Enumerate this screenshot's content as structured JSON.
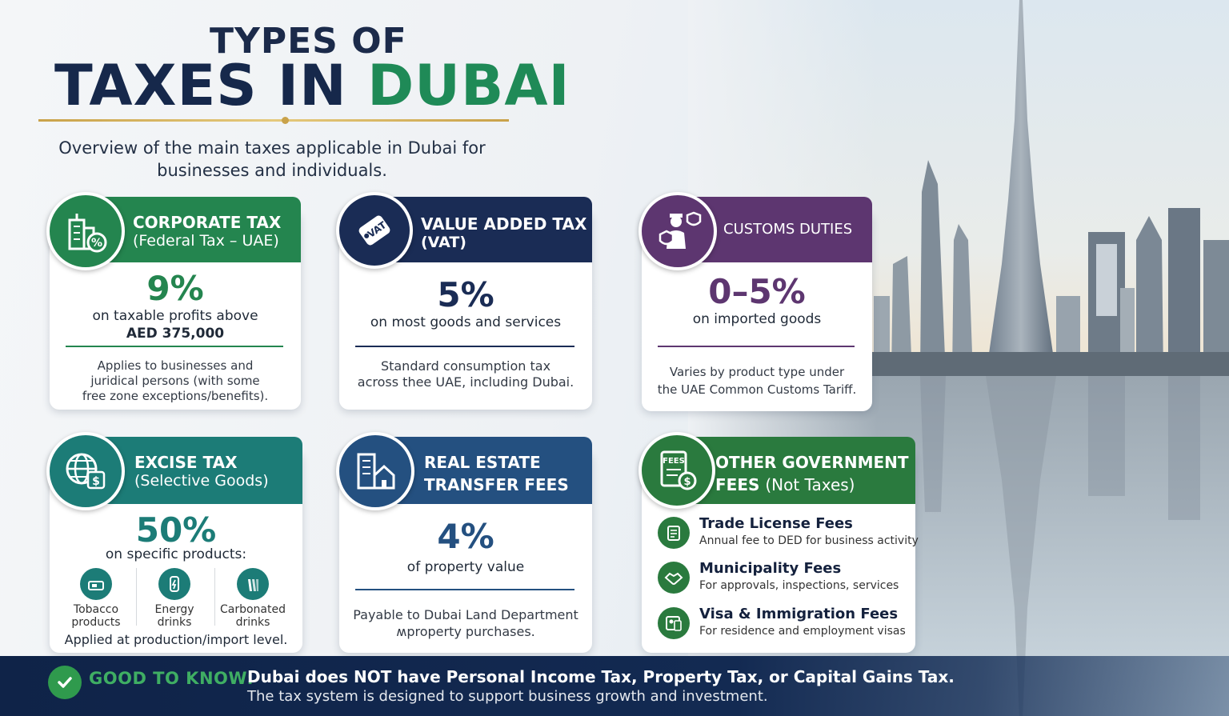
{
  "header": {
    "title_line1": "TYPES OF",
    "title_line2_main": "TAXES IN ",
    "title_line2_accent": "DUBAI",
    "subtitle_line1": "Overview of the main taxes applicable in Dubai for",
    "subtitle_line2": "businesses  and individuals."
  },
  "colors": {
    "navy": "#16284b",
    "green": "#24854f",
    "purple": "#5d3670",
    "teal": "#1c7c77",
    "blue": "#245080",
    "gold": "#c9a24a"
  },
  "cards": {
    "corporate": {
      "icon": "building-percent-icon",
      "title": "CORPORATE TAX",
      "subtitle": "(Federal Tax – UAE)",
      "rate": "9%",
      "desc_line1": "on taxable profits above",
      "desc_line2": "AED 375,000",
      "note_line1": "Applies to businesses and",
      "note_line2": "juridical persons (with some",
      "note_line3": "free zone exceptions/benefits)."
    },
    "vat": {
      "icon": "vat-tag-icon",
      "icon_text": "VAT",
      "title": "VALUE ADDED TAX",
      "subtitle": "(VAT)",
      "rate": "5%",
      "desc_line1": "on most goods and services",
      "note_line1": "Standard consumption tax",
      "note_line2": "across thee UAE, including Dubai."
    },
    "customs": {
      "icon": "customs-officer-icon",
      "title": "CUSTOMS DUTIES",
      "rate": "0–5%",
      "desc_line1": "on imported goods",
      "note_line1": "Varies by product type under",
      "note_line2": "the UAE Common Customs Tariff."
    },
    "excise": {
      "icon": "globe-dollar-icon",
      "title": "EXCISE TAX",
      "subtitle": "(Selective Goods)",
      "rate": "50%",
      "desc_line1": "on specific products:",
      "products": [
        {
          "label1": "Tobacco",
          "label2": "products",
          "icon": "tobacco-icon"
        },
        {
          "label1": "Energy",
          "label2": "drinks",
          "icon": "energy-drink-icon"
        },
        {
          "label1": "Carbonated",
          "label2": "drinks",
          "icon": "carbonated-drink-icon"
        }
      ],
      "note_line1": "Applied at production/import level."
    },
    "realestate": {
      "icon": "house-building-icon",
      "title": "REAL ESTATE",
      "subtitle": "TRANSFER FEES",
      "rate": "4%",
      "desc_line1": "of property value",
      "note_line1": "Payable to Dubai Land Department",
      "note_line2": "ʍproperty purchases."
    },
    "other": {
      "icon": "fees-document-icon",
      "icon_text": "FEES",
      "title": "OTHER GOVERNMENT",
      "subtitle_bold": "FEES ",
      "subtitle_normal": "(Not Taxes)",
      "fees": [
        {
          "title": "Trade License Fees",
          "sub": "Annual fee to DED for business activity",
          "icon": "license-icon"
        },
        {
          "title": "Municipality Fees",
          "sub": "For approvals, inspections, services",
          "icon": "handshake-icon"
        },
        {
          "title": "Visa & Immigration Fees",
          "sub": "For residence and employment visas",
          "icon": "visa-icon"
        }
      ]
    }
  },
  "footer": {
    "label": "GOOD TO KNOW:",
    "main": "Dubai does NOT have Personal Income Tax, Property Tax, or Capital Gains Tax.",
    "sub": "The tax system is designed to support business growth and investment."
  }
}
